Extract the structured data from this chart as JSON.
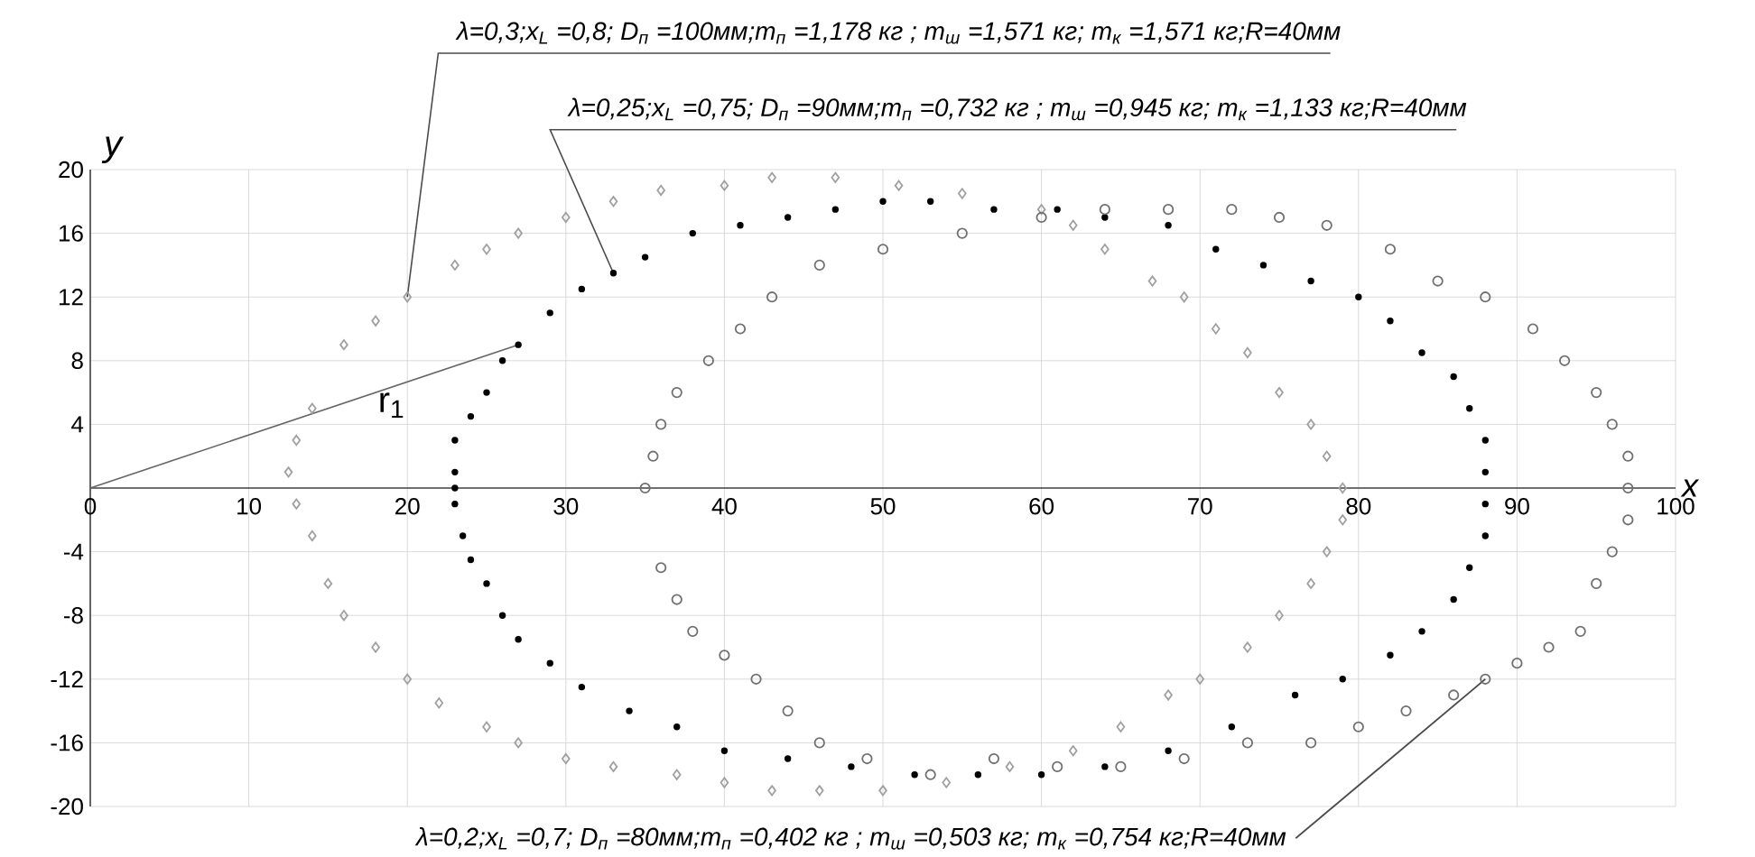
{
  "chart_data": {
    "type": "scatter",
    "xlabel": "x",
    "ylabel": "y",
    "xlim": [
      0,
      100
    ],
    "ylim": [
      -20,
      20
    ],
    "xticks": [
      0,
      10,
      20,
      30,
      40,
      50,
      60,
      70,
      80,
      90,
      100
    ],
    "yticks": [
      -20,
      -16,
      -12,
      -8,
      -4,
      4,
      8,
      12,
      16,
      20
    ],
    "grid": true,
    "series": [
      {
        "color": "#a0a0a0",
        "marker": "diamond",
        "x": [
          12.5,
          13,
          14,
          16,
          18,
          20,
          23,
          25,
          27,
          30,
          33,
          36,
          40,
          43,
          47,
          51,
          55,
          60,
          62,
          64,
          67,
          69,
          71,
          73,
          75,
          77,
          78,
          79,
          79,
          78,
          77,
          75,
          73,
          70,
          68,
          65,
          62,
          58,
          54,
          50,
          46,
          43,
          40,
          37,
          33,
          30,
          27,
          25,
          22,
          20,
          18,
          16,
          15,
          14,
          13
        ],
        "values": [
          1,
          3,
          5,
          9,
          10.5,
          12,
          14,
          15,
          16,
          17,
          18,
          18.7,
          19,
          19.5,
          19.5,
          19,
          18.5,
          17.5,
          16.5,
          15,
          13,
          12,
          10,
          8.5,
          6,
          4,
          2,
          0,
          -2,
          -4,
          -6,
          -8,
          -10,
          -12,
          -13,
          -15,
          -16.5,
          -17.5,
          -18.5,
          -19,
          -19,
          -19,
          -18.5,
          -18,
          -17.5,
          -17,
          -16,
          -15,
          -13.5,
          -12,
          -10,
          -8,
          -6,
          -3,
          -1
        ]
      },
      {
        "color": "#000000",
        "marker": "circle",
        "x": [
          23,
          23,
          23,
          24,
          25,
          26,
          27,
          29,
          31,
          33,
          35,
          38,
          41,
          44,
          47,
          50,
          53,
          57,
          61,
          64,
          68,
          71,
          74,
          77,
          80,
          82,
          84,
          86,
          87,
          88,
          88,
          88,
          88,
          87,
          86,
          84,
          82,
          79,
          76,
          72,
          68,
          64,
          60,
          56,
          52,
          48,
          44,
          40,
          37,
          34,
          31,
          29,
          27,
          26,
          25,
          24,
          23.5,
          23
        ],
        "values": [
          0,
          1,
          3,
          4.5,
          6,
          8,
          9,
          11,
          12.5,
          13.5,
          14.5,
          16,
          16.5,
          17,
          17.5,
          18,
          18,
          17.5,
          17.5,
          17,
          16.5,
          15,
          14,
          13,
          12,
          10.5,
          8.5,
          7,
          5,
          3,
          1,
          -1,
          -3,
          -5,
          -7,
          -9,
          -10.5,
          -12,
          -13,
          -15,
          -16.5,
          -17.5,
          -18,
          -18,
          -18,
          -17.5,
          -17,
          -16.5,
          -15,
          -14,
          -12.5,
          -11,
          -9.5,
          -8,
          -6,
          -4.5,
          -3,
          -1
        ]
      },
      {
        "type": "line",
        "color": "#666666",
        "marker": "none",
        "x": [
          0,
          27
        ],
        "values": [
          0,
          9
        ]
      },
      {
        "color": "#707070",
        "marker": "circle_open",
        "x": [
          35,
          35.5,
          36,
          37,
          39,
          41,
          43,
          46,
          50,
          55,
          60,
          64,
          68,
          72,
          75,
          78,
          82,
          85,
          88,
          91,
          93,
          95,
          96,
          97,
          97,
          97,
          96,
          95,
          94,
          92,
          90,
          88,
          86,
          83,
          80,
          77,
          73,
          69,
          65,
          61,
          57,
          53,
          49,
          46,
          44,
          42,
          40,
          38,
          37,
          36
        ],
        "values": [
          0,
          2,
          4,
          6,
          8,
          10,
          12,
          14,
          15,
          16,
          17,
          17.5,
          17.5,
          17.5,
          17,
          16.5,
          15,
          13,
          12,
          10,
          8,
          6,
          4,
          2,
          0,
          -2,
          -4,
          -6,
          -9,
          -10,
          -11,
          -12,
          -13,
          -14,
          -15,
          -16,
          -16,
          -17,
          -17.5,
          -17.5,
          -17,
          -18,
          -17,
          -16,
          -14,
          -12,
          -10.5,
          -9,
          -7,
          -5
        ]
      }
    ],
    "annotations": [
      "λ=0,3;x$_{L}$ =0,8; D$_{п}$ =100мм;m$_{п}$ =1,178 кг ; m$_{ш}$ =1,571 кг; m$_{к}$ =1,571 кг;R=40мм",
      "λ=0,25;x$_{L}$ =0,75; D$_{п}$ =90мм;m$_{п}$ =0,732 кг ; m$_{ш}$ =0,945 кг; m$_{к}$ =1,133 кг;R=40мм",
      "λ=0,2;x$_{L}$ =0,7; D$_{п}$ =80мм;m$_{п}$ =0,402 кг ; m$_{ш}$ =0,503 кг; m$_{к}$ =0,754 кг;R=40мм",
      "r$_{1}$"
    ]
  }
}
